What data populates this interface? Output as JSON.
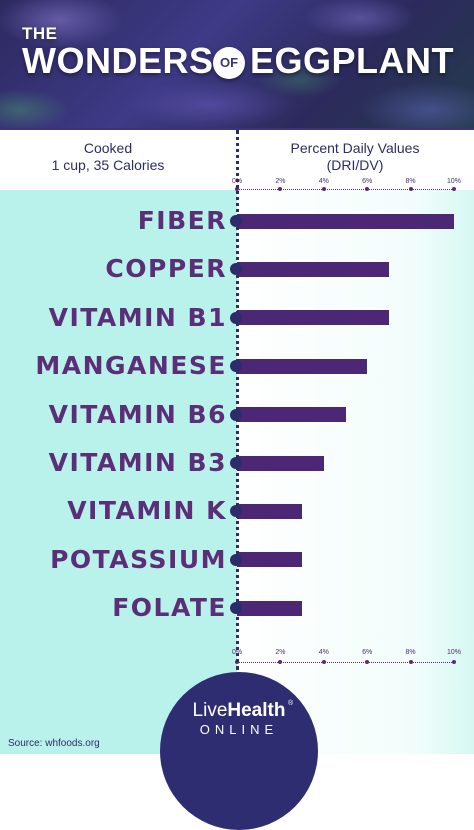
{
  "title": {
    "the": "THE",
    "main": "WONDERS",
    "of": "OF",
    "end": "EGGPLANT"
  },
  "left_header": {
    "line1": "Cooked",
    "line2": "1 cup, 35 Calories"
  },
  "right_header": {
    "line1": "Percent Daily Values",
    "line2": "(DRI/DV)"
  },
  "chart_data": {
    "type": "bar",
    "orientation": "horizontal",
    "categories": [
      "FIBER",
      "COPPER",
      "VITAMIN B1",
      "MANGANESE",
      "VITAMIN B6",
      "VITAMIN B3",
      "VITAMIN K",
      "POTASSIUM",
      "FOLATE"
    ],
    "values": [
      10,
      7,
      7,
      6,
      5,
      4,
      3,
      3,
      3
    ],
    "xlim": [
      0,
      10
    ],
    "x_ticks": [
      "0%",
      "2%",
      "4%",
      "6%",
      "8%",
      "10%"
    ],
    "axis_position": "top and bottom",
    "colors": {
      "bar": "#4b2775",
      "label": "#5c2e78",
      "left_bg": "#b8f2ea"
    }
  },
  "logo": {
    "live": "Live",
    "health": "Health",
    "reg": "®",
    "sub": "ONLINE"
  },
  "source": "Source: whfoods.org"
}
